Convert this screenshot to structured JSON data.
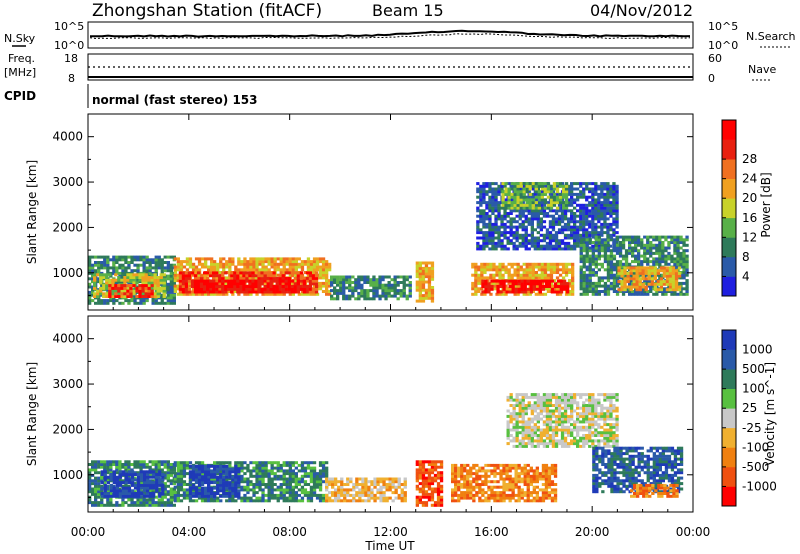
{
  "header": {
    "station": "Zhongshan Station (fitACF)",
    "beam": "Beam 15",
    "date": "04/Nov/2012"
  },
  "noise_panel": {
    "left_label": "N.Sky",
    "left_ticks": [
      "10^5",
      "10^0"
    ],
    "right_label": "N.Search",
    "right_ticks": [
      "10^5",
      "10^0"
    ]
  },
  "freq_panel": {
    "left_label_1": "Freq.",
    "left_label_2": "[MHz]",
    "left_ticks": [
      "18",
      "8"
    ],
    "right_label": "Nave",
    "right_ticks": [
      "60",
      "0"
    ]
  },
  "cpid_panel": {
    "label": "CPID",
    "text": "normal (fast stereo) 153"
  },
  "chart_data": [
    {
      "type": "heatmap",
      "title": "Power",
      "xlabel": "",
      "ylabel": "Slant Range [km]",
      "x_ticks": [
        "00:00",
        "04:00",
        "08:00",
        "12:00",
        "16:00",
        "20:00",
        "00:00"
      ],
      "y_ticks": [
        "1000",
        "2000",
        "3000",
        "4000"
      ],
      "xlim": [
        0,
        24
      ],
      "ylim": [
        180,
        4500
      ],
      "colorbar_label": "Power [dB]",
      "colorbar_ticks": [
        "4",
        "8",
        "12",
        "16",
        "20",
        "24",
        "28"
      ],
      "colorbar_colors": [
        "#1f1fe0",
        "#2a5aa8",
        "#2e7a5a",
        "#58b048",
        "#c8d22a",
        "#f0a020",
        "#f07020",
        "#e82010",
        "#ff0000"
      ],
      "regions": [
        {
          "t0": 0.0,
          "t1": 3.4,
          "r0": 300,
          "r1": 1350,
          "level": 2
        },
        {
          "t0": 0.2,
          "t1": 3.0,
          "r0": 450,
          "r1": 950,
          "level": 4
        },
        {
          "t0": 0.8,
          "t1": 2.6,
          "r0": 450,
          "r1": 700,
          "level": 7
        },
        {
          "t0": 3.4,
          "t1": 9.6,
          "r0": 500,
          "r1": 1300,
          "level": 5
        },
        {
          "t0": 3.6,
          "t1": 9.0,
          "r0": 550,
          "r1": 1000,
          "level": 7
        },
        {
          "t0": 4.2,
          "t1": 8.6,
          "r0": 550,
          "r1": 800,
          "level": 8
        },
        {
          "t0": 9.6,
          "t1": 12.8,
          "r0": 400,
          "r1": 900,
          "level": 2
        },
        {
          "t0": 13.0,
          "t1": 13.6,
          "r0": 350,
          "r1": 1250,
          "level": 5
        },
        {
          "t0": 15.2,
          "t1": 19.2,
          "r0": 500,
          "r1": 1200,
          "level": 5
        },
        {
          "t0": 15.6,
          "t1": 19.0,
          "r0": 550,
          "r1": 850,
          "level": 8
        },
        {
          "t0": 15.4,
          "t1": 21.0,
          "r0": 1500,
          "r1": 3000,
          "level": 1
        },
        {
          "t0": 16.4,
          "t1": 19.0,
          "r0": 2400,
          "r1": 2950,
          "level": 3
        },
        {
          "t0": 19.5,
          "t1": 23.8,
          "r0": 500,
          "r1": 1800,
          "level": 2
        },
        {
          "t0": 21.0,
          "t1": 23.5,
          "r0": 600,
          "r1": 1100,
          "level": 5
        }
      ]
    },
    {
      "type": "heatmap",
      "title": "Velocity",
      "xlabel": "Time UT",
      "ylabel": "Slant Range [km]",
      "x_ticks": [
        "00:00",
        "04:00",
        "08:00",
        "12:00",
        "16:00",
        "20:00",
        "00:00"
      ],
      "y_ticks": [
        "1000",
        "2000",
        "3000",
        "4000"
      ],
      "xlim": [
        0,
        24
      ],
      "ylim": [
        180,
        4500
      ],
      "colorbar_label": "Velocity [m s^-1]",
      "colorbar_ticks": [
        "1000",
        "500",
        "100",
        "25",
        "-25",
        "-100",
        "-500",
        "-1000"
      ],
      "colorbar_colors": [
        "#1f3ab8",
        "#2a5aa8",
        "#2e7a5a",
        "#58c040",
        "#c8c8c8",
        "#f0b030",
        "#f08010",
        "#f05010",
        "#ff0000"
      ],
      "regions": [
        {
          "t0": 0.0,
          "t1": 3.4,
          "r0": 300,
          "r1": 1300,
          "level": 2
        },
        {
          "t0": 0.5,
          "t1": 3.0,
          "r0": 500,
          "r1": 1100,
          "level": 0
        },
        {
          "t0": 3.4,
          "t1": 9.4,
          "r0": 400,
          "r1": 1250,
          "level": 2
        },
        {
          "t0": 4.0,
          "t1": 6.0,
          "r0": 500,
          "r1": 1200,
          "level": 0
        },
        {
          "t0": 9.4,
          "t1": 12.6,
          "r0": 400,
          "r1": 900,
          "level": 5
        },
        {
          "t0": 13.0,
          "t1": 14.0,
          "r0": 300,
          "r1": 1300,
          "level": 7
        },
        {
          "t0": 14.4,
          "t1": 18.5,
          "r0": 400,
          "r1": 1200,
          "level": 6
        },
        {
          "t0": 16.6,
          "t1": 21.0,
          "r0": 1600,
          "r1": 2800,
          "level": 4
        },
        {
          "t0": 20.0,
          "t1": 23.6,
          "r0": 600,
          "r1": 1600,
          "level": 1
        },
        {
          "t0": 21.5,
          "t1": 23.4,
          "r0": 500,
          "r1": 800,
          "level": 6
        }
      ]
    }
  ]
}
